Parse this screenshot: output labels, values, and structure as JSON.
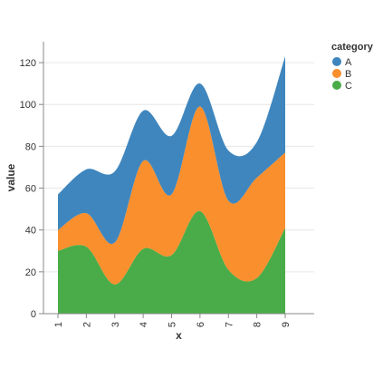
{
  "chart_data": {
    "type": "area",
    "stacked": true,
    "interpolation": "smooth",
    "title": "",
    "xlabel": "x",
    "ylabel": "value",
    "x": [
      1,
      2,
      3,
      4,
      5,
      6,
      7,
      8,
      9
    ],
    "xlim": [
      1,
      9
    ],
    "ylim": [
      0,
      130
    ],
    "yticks": [
      0,
      20,
      40,
      60,
      80,
      100,
      120
    ],
    "grid": true,
    "legend": {
      "title": "category",
      "placement": "top-right"
    },
    "series": [
      {
        "name": "C",
        "color": "#4aac48",
        "values": [
          30,
          32,
          14,
          31,
          28,
          49,
          21,
          17,
          41
        ]
      },
      {
        "name": "B",
        "color": "#fa8f2d",
        "values": [
          10,
          16,
          20,
          42,
          29,
          50,
          33,
          48,
          36
        ]
      },
      {
        "name": "A",
        "color": "#3f86be",
        "values": [
          17,
          21,
          34,
          24,
          28,
          11,
          24,
          17,
          46
        ]
      }
    ]
  }
}
